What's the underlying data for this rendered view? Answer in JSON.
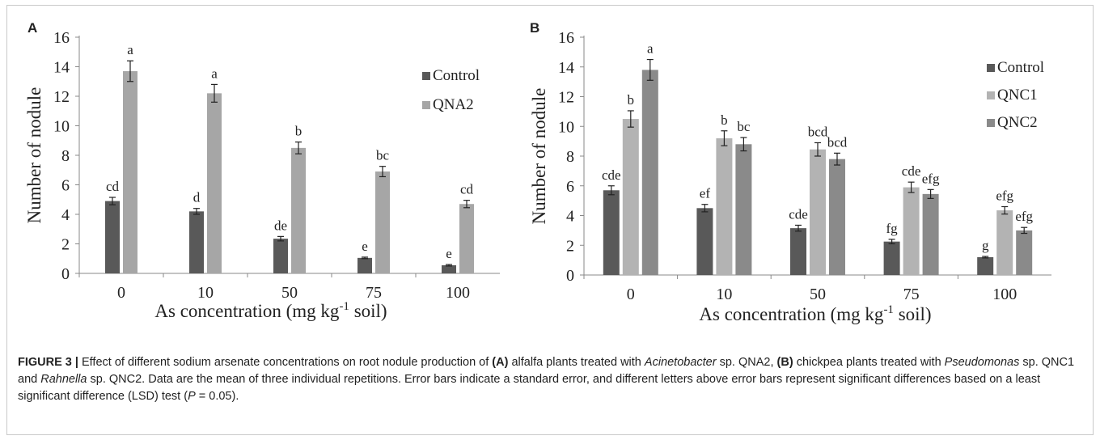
{
  "chart_data": [
    {
      "type": "bar",
      "panel": "A",
      "categories": [
        "0",
        "10",
        "50",
        "75",
        "100"
      ],
      "ylabel": "Number of nodule",
      "xlabel_pre": "As concentration (mg kg",
      "xlabel_sup": "-1",
      "xlabel_post": " soil)",
      "ylim": [
        0,
        16
      ],
      "yticks": [
        0,
        2,
        4,
        6,
        8,
        10,
        12,
        14,
        16
      ],
      "grid": false,
      "legend_position": "right",
      "series": [
        {
          "name": "Control",
          "color": "#595959",
          "values": [
            4.9,
            4.2,
            2.35,
            1.05,
            0.55
          ],
          "errors": [
            0.25,
            0.2,
            0.15,
            0.05,
            0.05
          ],
          "labels": [
            "cd",
            "d",
            "de",
            "e",
            "e"
          ]
        },
        {
          "name": "QNA2",
          "color": "#a6a6a6",
          "values": [
            13.7,
            12.2,
            8.5,
            6.9,
            4.7
          ],
          "errors": [
            0.7,
            0.6,
            0.4,
            0.35,
            0.25
          ],
          "labels": [
            "a",
            "a",
            "b",
            "bc",
            "cd"
          ]
        }
      ]
    },
    {
      "type": "bar",
      "panel": "B",
      "categories": [
        "0",
        "10",
        "50",
        "75",
        "100"
      ],
      "ylabel": "Number of nodule",
      "xlabel_pre": "As concentration (mg kg",
      "xlabel_sup": "-1",
      "xlabel_post": " soil)",
      "ylim": [
        0,
        16
      ],
      "yticks": [
        0,
        2,
        4,
        6,
        8,
        10,
        12,
        14,
        16
      ],
      "grid": false,
      "legend_position": "right",
      "series": [
        {
          "name": "Control",
          "color": "#595959",
          "values": [
            5.7,
            4.5,
            3.15,
            2.25,
            1.2
          ],
          "errors": [
            0.3,
            0.25,
            0.2,
            0.15,
            0.05
          ],
          "labels": [
            "cde",
            "ef",
            "cde",
            "fg",
            "g"
          ]
        },
        {
          "name": "QNC1",
          "color": "#b3b3b3",
          "values": [
            10.5,
            9.2,
            8.45,
            5.9,
            4.35
          ],
          "errors": [
            0.55,
            0.5,
            0.45,
            0.35,
            0.25
          ],
          "labels": [
            "b",
            "b",
            "bcd",
            "cde",
            "efg"
          ]
        },
        {
          "name": "QNC2",
          "color": "#8a8a8a",
          "values": [
            13.8,
            8.8,
            7.8,
            5.45,
            3.0
          ],
          "errors": [
            0.7,
            0.45,
            0.4,
            0.3,
            0.2
          ],
          "labels": [
            "a",
            "bc",
            "bcd",
            "efg",
            "efg"
          ]
        }
      ]
    }
  ],
  "caption": {
    "lead": "FIGURE 3 |",
    "t1": " Effect of different sodium arsenate concentrations on root nodule production of ",
    "a": "(A)",
    "t2": " alfalfa plants treated with ",
    "i1": "Acinetobacter",
    "t3": " sp. QNA2, ",
    "b": "(B)",
    "t4": " chickpea plants treated with ",
    "i2": "Pseudomonas",
    "t5": " sp. QNC1 and ",
    "i3": "Rahnella",
    "t6": " sp. QNC2. Data are the mean of three individual repetitions. Error bars indicate a standard error, and different letters above error bars represent significant differences based on a least significant difference (LSD) test (",
    "p": "P",
    "t7": " = 0.05)."
  }
}
